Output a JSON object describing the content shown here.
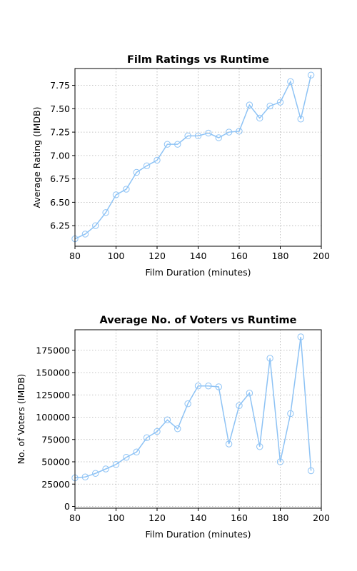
{
  "chart_data": [
    {
      "type": "line",
      "title": "Film Ratings vs Runtime",
      "xlabel": "Film Duration (minutes)",
      "ylabel": "Average Rating (IMDB)",
      "xlim": [
        80,
        200
      ],
      "ylim": [
        6.03,
        7.93
      ],
      "xticks": [
        80,
        100,
        120,
        140,
        160,
        180,
        200
      ],
      "yticks": [
        6.25,
        6.5,
        6.75,
        7.0,
        7.25,
        7.5,
        7.75
      ],
      "ytick_labels": [
        "6.25",
        "6.50",
        "6.75",
        "7.00",
        "7.25",
        "7.50",
        "7.75"
      ],
      "grid": true,
      "series": [
        {
          "color": "#8ec3f5",
          "marker": "hollow-circle",
          "x": [
            80,
            85,
            90,
            95,
            100,
            105,
            110,
            115,
            120,
            125,
            130,
            135,
            140,
            145,
            150,
            155,
            160,
            165,
            170,
            175,
            180,
            185,
            190,
            195
          ],
          "y": [
            6.11,
            6.16,
            6.25,
            6.39,
            6.58,
            6.64,
            6.82,
            6.89,
            6.95,
            7.12,
            7.12,
            7.21,
            7.21,
            7.24,
            7.19,
            7.25,
            7.26,
            7.54,
            7.4,
            7.53,
            7.57,
            7.79,
            7.39,
            7.86
          ]
        }
      ]
    },
    {
      "type": "line",
      "title": "Average No. of Voters vs Runtime",
      "xlabel": "Film Duration (minutes)",
      "ylabel": "No. of Voters (IMDB)",
      "xlim": [
        80,
        200
      ],
      "ylim": [
        -2000,
        198000
      ],
      "xticks": [
        80,
        100,
        120,
        140,
        160,
        180,
        200
      ],
      "yticks": [
        0,
        25000,
        50000,
        75000,
        100000,
        125000,
        150000,
        175000
      ],
      "ytick_labels": [
        "0",
        "25000",
        "50000",
        "75000",
        "100000",
        "125000",
        "150000",
        "175000"
      ],
      "grid": true,
      "series": [
        {
          "color": "#8ec3f5",
          "marker": "hollow-circle",
          "x": [
            80,
            85,
            90,
            95,
            100,
            105,
            110,
            115,
            120,
            125,
            130,
            135,
            140,
            145,
            150,
            155,
            160,
            165,
            170,
            175,
            180,
            185,
            190,
            195
          ],
          "y": [
            32000,
            33000,
            37000,
            42000,
            47000,
            55000,
            61000,
            77000,
            84000,
            97000,
            87000,
            115000,
            135000,
            135000,
            134000,
            70000,
            113000,
            127000,
            67000,
            166000,
            50000,
            104000,
            190000,
            40000
          ]
        }
      ]
    }
  ]
}
